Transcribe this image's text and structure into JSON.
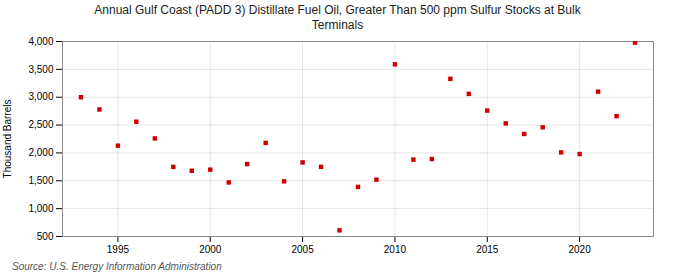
{
  "chart_data": {
    "type": "scatter",
    "title": "Annual Gulf Coast (PADD 3) Distillate Fuel Oil, Greater Than 500 ppm Sulfur Stocks at Bulk\nTerminals",
    "ylabel": "Thousand Barrels",
    "source": "Source: U.S. Energy Information Administration",
    "x": [
      1993,
      1994,
      1995,
      1996,
      1997,
      1998,
      1999,
      2000,
      2001,
      2002,
      2003,
      2004,
      2005,
      2006,
      2007,
      2008,
      2009,
      2010,
      2011,
      2012,
      2013,
      2014,
      2015,
      2016,
      2017,
      2018,
      2019,
      2020,
      2021,
      2022,
      2023
    ],
    "values": [
      3000,
      2780,
      2130,
      2560,
      2260,
      1750,
      1680,
      1700,
      1470,
      1800,
      2180,
      1490,
      1830,
      1750,
      610,
      1390,
      1520,
      3590,
      1880,
      1890,
      3330,
      3060,
      2760,
      2530,
      2340,
      2460,
      2010,
      1980,
      3100,
      2660,
      3980
    ],
    "color": "#cc0000",
    "marker": "square",
    "xlim": [
      1992.0,
      2024.0
    ],
    "ylim": [
      500,
      4000
    ],
    "xticks": [
      1995,
      2000,
      2005,
      2010,
      2015,
      2020
    ],
    "yticks": [
      500,
      {
        "value": 1000,
        "label": "1,000"
      },
      {
        "value": 1500,
        "label": "1,500"
      },
      {
        "value": 2000,
        "label": "2,000"
      },
      {
        "value": 2500,
        "label": "2,500"
      },
      {
        "value": 3000,
        "label": "3,000"
      },
      {
        "value": 3500,
        "label": "3,500"
      },
      {
        "value": 4000,
        "label": "4,000"
      }
    ],
    "grid": true
  }
}
